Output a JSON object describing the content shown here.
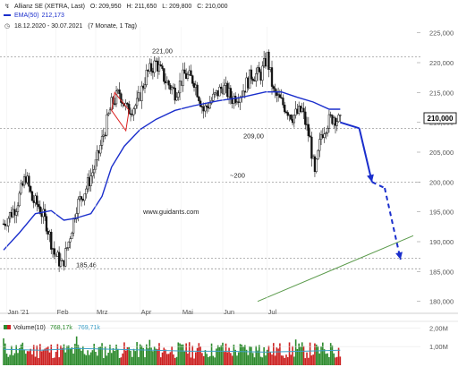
{
  "header": {
    "symbol_icon": "chart-symbol-icon",
    "title": "Allianz SE (XETRA, Last)",
    "ohlc": {
      "open": "O: 209,950",
      "high": "H: 211,650",
      "low": "L: 209,800",
      "close": "C: 210,000"
    },
    "ema_label": "EMA(50)",
    "ema_value": "212,173",
    "clock_icon": "clock-icon",
    "date_range": "18.12.2020 - 30.07.2021",
    "period": "(7 Monate, 1 Tag)"
  },
  "chart_data": [
    {
      "type": "candlestick",
      "x_labels": [
        "Jan '21",
        "Feb",
        "Mrz",
        "Apr",
        "Mai",
        "Jun",
        "Jul"
      ],
      "y_ticks": [
        "180,000",
        "185,000",
        "190,000",
        "195,000",
        "200,000",
        "205,000",
        "210,000",
        "215,000",
        "220,000",
        "225,000"
      ],
      "ylim": [
        178,
        226
      ],
      "price_path": [
        {
          "x": 0,
          "y": 193
        },
        {
          "x": 8,
          "y": 196
        },
        {
          "x": 14,
          "y": 201
        },
        {
          "x": 18,
          "y": 197
        },
        {
          "x": 22,
          "y": 196
        },
        {
          "x": 27,
          "y": 193
        },
        {
          "x": 32,
          "y": 188
        },
        {
          "x": 37,
          "y": 186
        },
        {
          "x": 41,
          "y": 190
        },
        {
          "x": 46,
          "y": 196
        },
        {
          "x": 52,
          "y": 199
        },
        {
          "x": 58,
          "y": 203
        },
        {
          "x": 63,
          "y": 208
        },
        {
          "x": 68,
          "y": 213
        },
        {
          "x": 73,
          "y": 215
        },
        {
          "x": 78,
          "y": 212
        },
        {
          "x": 84,
          "y": 213
        },
        {
          "x": 90,
          "y": 218
        },
        {
          "x": 96,
          "y": 220
        },
        {
          "x": 102,
          "y": 217
        },
        {
          "x": 108,
          "y": 215
        },
        {
          "x": 114,
          "y": 218
        },
        {
          "x": 120,
          "y": 217
        },
        {
          "x": 126,
          "y": 212
        },
        {
          "x": 132,
          "y": 214
        },
        {
          "x": 138,
          "y": 216
        },
        {
          "x": 144,
          "y": 214
        },
        {
          "x": 150,
          "y": 215
        },
        {
          "x": 156,
          "y": 218
        },
        {
          "x": 162,
          "y": 218
        },
        {
          "x": 166,
          "y": 221
        },
        {
          "x": 170,
          "y": 215
        },
        {
          "x": 176,
          "y": 213
        },
        {
          "x": 182,
          "y": 211
        },
        {
          "x": 188,
          "y": 212
        },
        {
          "x": 193,
          "y": 207
        },
        {
          "x": 196,
          "y": 201
        },
        {
          "x": 200,
          "y": 208
        },
        {
          "x": 204,
          "y": 210
        },
        {
          "x": 208,
          "y": 211
        },
        {
          "x": 212,
          "y": 210
        }
      ],
      "ema50": [
        {
          "x": 0,
          "y": 188.6
        },
        {
          "x": 10,
          "y": 191.5
        },
        {
          "x": 20,
          "y": 194.7
        },
        {
          "x": 30,
          "y": 195.2
        },
        {
          "x": 38,
          "y": 193.6
        },
        {
          "x": 45,
          "y": 193.9
        },
        {
          "x": 55,
          "y": 194.7
        },
        {
          "x": 62,
          "y": 197.6
        },
        {
          "x": 68,
          "y": 202.5
        },
        {
          "x": 76,
          "y": 206.0
        },
        {
          "x": 86,
          "y": 208.8
        },
        {
          "x": 96,
          "y": 210.5
        },
        {
          "x": 108,
          "y": 212.0
        },
        {
          "x": 120,
          "y": 212.8
        },
        {
          "x": 135,
          "y": 213.6
        },
        {
          "x": 150,
          "y": 214.2
        },
        {
          "x": 165,
          "y": 215.1
        },
        {
          "x": 175,
          "y": 215.1
        },
        {
          "x": 185,
          "y": 214.2
        },
        {
          "x": 195,
          "y": 213.4
        },
        {
          "x": 205,
          "y": 212.2
        },
        {
          "x": 212,
          "y": 212.2
        }
      ],
      "support_levels": [
        {
          "value": 221.0,
          "label": "221,00"
        },
        {
          "value": 209.0,
          "label": "209,00"
        },
        {
          "value": 200.0,
          "label": "~200"
        },
        {
          "value": 185.46,
          "label": "185,46"
        }
      ],
      "last_price_label": "210,000",
      "watermark": "www.guidants.com",
      "trendline": {
        "x1": 160,
        "y1": 180,
        "x2": 258,
        "y2": 191
      },
      "projection": [
        {
          "x": 212,
          "y": 210
        },
        {
          "x": 224,
          "y": 209
        },
        {
          "x": 232,
          "y": 200
        },
        {
          "x": 240,
          "y": 199
        },
        {
          "x": 250,
          "y": 187
        }
      ],
      "flag_channel": [
        {
          "x": 70,
          "y": 215
        },
        {
          "x": 79,
          "y": 212
        },
        {
          "x": 77,
          "y": 208.6
        },
        {
          "x": 68,
          "y": 212
        }
      ]
    },
    {
      "type": "bar",
      "title": "Volume(10)",
      "legend_values": [
        "768,17k",
        "769,71k"
      ],
      "y_ticks": [
        "1,00M",
        "2,00M"
      ],
      "ylim": [
        0,
        2.3
      ],
      "avg_line": [
        0.85,
        0.8,
        0.9,
        0.85,
        0.8,
        0.75,
        0.75,
        0.7,
        0.75,
        0.8
      ]
    }
  ]
}
